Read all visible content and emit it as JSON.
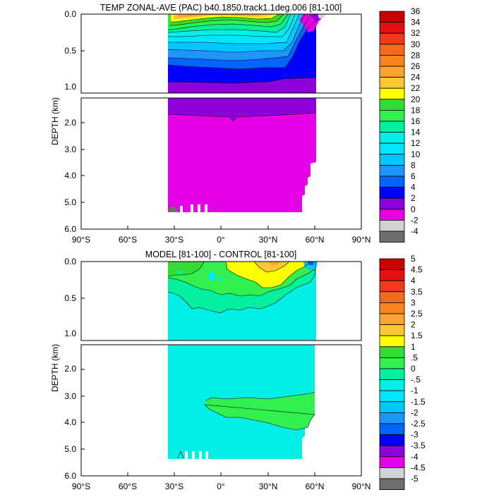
{
  "chart_data": [
    {
      "type": "heatmap",
      "title": "TEMP ZONAL-AVE (PAC) b40.1850.track1.1deg.006 [81-100]",
      "xlabel": "",
      "ylabel": "DEPTH (km)",
      "x_ticks": [
        "90°S",
        "60°S",
        "30°S",
        "0°",
        "30°N",
        "60°N",
        "90°N"
      ],
      "y_ticks_upper": [
        "0.0",
        "0.5",
        "1.0"
      ],
      "y_ticks_lower": [
        "2.0",
        "3.0",
        "4.0",
        "5.0",
        "6.0"
      ],
      "xlim": [
        -90,
        90
      ],
      "ylim": [
        6.0,
        0.0
      ],
      "data_extent_lat": [
        -34,
        62
      ],
      "colorbar_labels": [
        "36",
        "34",
        "32",
        "30",
        "28",
        "26",
        "24",
        "22",
        "20",
        "18",
        "16",
        "14",
        "12",
        "10",
        "8",
        "6",
        "4",
        "2",
        "0",
        "-2",
        "-4"
      ],
      "colorbar_colors": [
        "#c80000",
        "#e41010",
        "#f03a1e",
        "#f5691e",
        "#f8861e",
        "#faa532",
        "#fcc832",
        "#ffff00",
        "#32dc32",
        "#32f050",
        "#00f0a0",
        "#00f0e6",
        "#00e6ff",
        "#00c8ff",
        "#1e96ff",
        "#0064ff",
        "#0000ff",
        "#8c00dc",
        "#e600e6",
        "#d2d2d2",
        "#6e6e6e"
      ]
    },
    {
      "type": "heatmap",
      "title": "MODEL [81-100] - CONTROL [81-100]",
      "xlabel": "",
      "ylabel": "DEPTH (km)",
      "x_ticks": [
        "90°S",
        "60°S",
        "30°S",
        "0°",
        "30°N",
        "60°N",
        "90°N"
      ],
      "y_ticks_upper": [
        "0.0",
        "0.5",
        "1.0"
      ],
      "y_ticks_lower": [
        "2.0",
        "3.0",
        "4.0",
        "5.0",
        "6.0"
      ],
      "xlim": [
        -90,
        90
      ],
      "ylim": [
        6.0,
        0.0
      ],
      "data_extent_lat": [
        -34,
        62
      ],
      "colorbar_labels": [
        "5",
        "4.5",
        "4",
        "3.5",
        "3",
        "2.5",
        "2",
        "1.5",
        "1",
        ".5",
        "0",
        "-.5",
        "-1",
        "-1.5",
        "-2",
        "-2.5",
        "-3",
        "-3.5",
        "-4",
        "-4.5",
        "-5"
      ],
      "colorbar_colors": [
        "#c80000",
        "#e41010",
        "#f03a1e",
        "#f5691e",
        "#f8861e",
        "#faa532",
        "#fcc832",
        "#ffff00",
        "#32dc32",
        "#32f050",
        "#00f0a0",
        "#00f0e6",
        "#00e6ff",
        "#00c8ff",
        "#1e96ff",
        "#0064ff",
        "#0000ff",
        "#8c00dc",
        "#e600e6",
        "#d2d2d2",
        "#6e6e6e"
      ]
    }
  ]
}
